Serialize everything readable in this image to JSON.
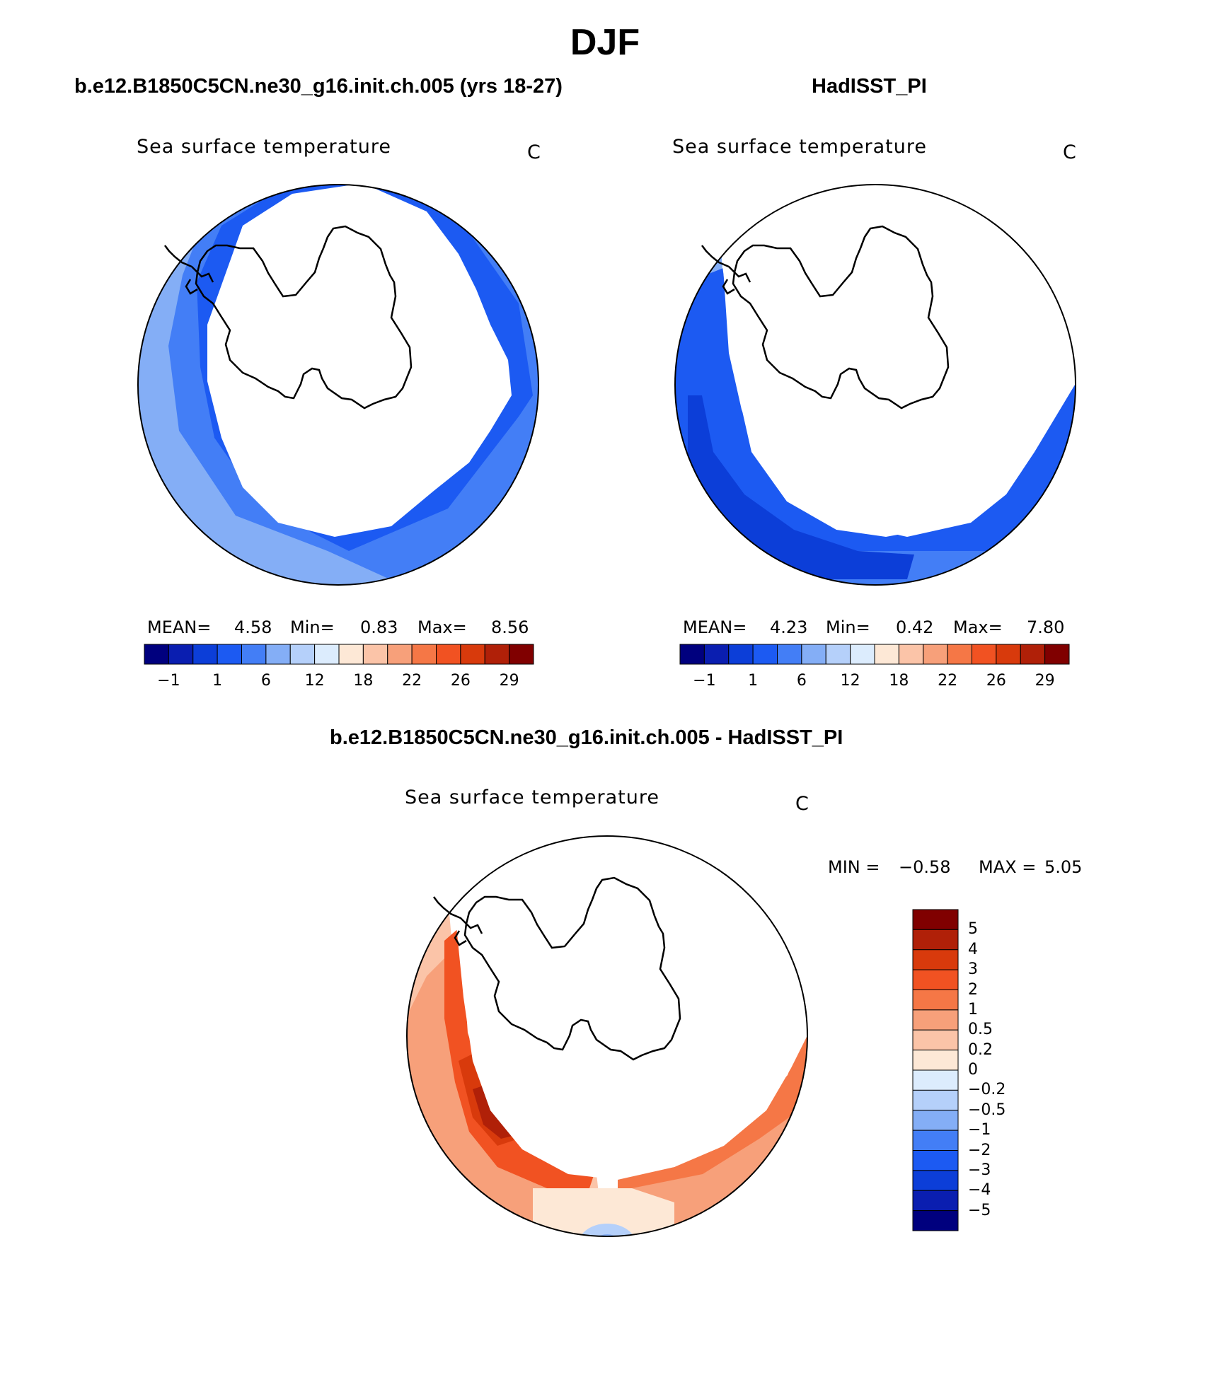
{
  "title": "DJF",
  "panels": {
    "model": {
      "heading": "b.e12.B1850C5CN.ne30_g16.init.ch.005 (yrs 18-27)",
      "variable": "Sea surface temperature",
      "units": "C",
      "mean_label": "MEAN=",
      "mean": "4.58",
      "min_label": "Min=",
      "min": "0.83",
      "max_label": "Max=",
      "max": "8.56"
    },
    "obs": {
      "heading": "HadISST_PI",
      "variable": "Sea surface temperature",
      "units": "C",
      "mean_label": "MEAN=",
      "mean": "4.23",
      "min_label": "Min=",
      "min": "0.42",
      "max_label": "Max=",
      "max": "7.80"
    },
    "diff": {
      "heading": "b.e12.B1850C5CN.ne30_g16.init.ch.005 - HadISST_PI",
      "variable": "Sea surface temperature",
      "units": "C",
      "min_label": "MIN =",
      "min": "−0.58",
      "max_label": "MAX =",
      "max": "5.05"
    }
  },
  "chart_data": [
    {
      "type": "heatmap",
      "title": "Sea surface temperature",
      "subtitle": "b.e12.B1850C5CN.ne30_g16.init.ch.005 (yrs 18-27)",
      "projection": "south polar stereographic",
      "units": "C",
      "colorbar_ticks": [
        "−1",
        "1",
        "6",
        "12",
        "18",
        "22",
        "26",
        "29"
      ],
      "colorbar_colors": [
        "#00007e",
        "#0a1eb0",
        "#0c3ed8",
        "#1c5af2",
        "#437ef6",
        "#84aef6",
        "#b5d0fa",
        "#dcecfd",
        "#fde8d6",
        "#fbc4a8",
        "#f7a07a",
        "#f57746",
        "#f15222",
        "#d83a0c",
        "#b02008",
        "#800000"
      ],
      "mean": 4.58,
      "min": 0.83,
      "max": 8.56
    },
    {
      "type": "heatmap",
      "title": "Sea surface temperature",
      "subtitle": "HadISST_PI",
      "projection": "south polar stereographic",
      "units": "C",
      "colorbar_ticks": [
        "−1",
        "1",
        "6",
        "12",
        "18",
        "22",
        "26",
        "29"
      ],
      "colorbar_colors": [
        "#00007e",
        "#0a1eb0",
        "#0c3ed8",
        "#1c5af2",
        "#437ef6",
        "#84aef6",
        "#b5d0fa",
        "#dcecfd",
        "#fde8d6",
        "#fbc4a8",
        "#f7a07a",
        "#f57746",
        "#f15222",
        "#d83a0c",
        "#b02008",
        "#800000"
      ],
      "mean": 4.23,
      "min": 0.42,
      "max": 7.8
    },
    {
      "type": "heatmap",
      "title": "Sea surface temperature",
      "subtitle": "b.e12.B1850C5CN.ne30_g16.init.ch.005 - HadISST_PI",
      "projection": "south polar stereographic",
      "units": "C",
      "colorbar_ticks": [
        "5",
        "4",
        "3",
        "2",
        "1",
        "0.5",
        "0.2",
        "0",
        "−0.2",
        "−0.5",
        "−1",
        "−2",
        "−3",
        "−4",
        "−5"
      ],
      "colorbar_colors": [
        "#800000",
        "#b02008",
        "#d83a0c",
        "#f15222",
        "#f57746",
        "#f7a07a",
        "#fbc4a8",
        "#fde8d6",
        "#dcecfd",
        "#b5d0fa",
        "#84aef6",
        "#437ef6",
        "#1c5af2",
        "#0c3ed8",
        "#0a1eb0",
        "#00007e"
      ],
      "min": -0.58,
      "max": 5.05
    }
  ]
}
